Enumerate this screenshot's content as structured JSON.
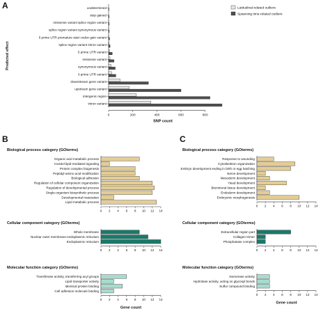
{
  "panels": {
    "a_label": "A",
    "b_label": "B",
    "c_label": "C"
  },
  "colors": {
    "latitudinal": "#e6e6e6",
    "spawning": "#4d4d4d",
    "biological_process": "#e4cd95",
    "cellular_component": "#1a7a6a",
    "molecular_function": "#a8dccf",
    "bar_edge": "#333333"
  },
  "chart_data": [
    {
      "id": "A",
      "type": "bar",
      "orientation": "horizontal",
      "xlabel": "SNP count",
      "ylabel": "Predicted effect",
      "xlim": [
        0,
        900
      ],
      "xticks": [
        0,
        200,
        400,
        600,
        800
      ],
      "legend_position": "top-right",
      "categories": [
        "undetermined",
        "stop gained",
        "missense variant splice region variant",
        "splice region variant synonymous variant",
        "5 prime UTR premature start codon gain variant",
        "splice region variant intron variant",
        "5 prime UTR variant",
        "missense variant",
        "synonymous variant",
        "3 prime UTR variant",
        "downstream gene variant",
        "upstream gene variant",
        "intergenic region",
        "intron variant"
      ],
      "series": [
        {
          "name": "Latitudinal-related outliers",
          "values": [
            0,
            0,
            1,
            1,
            1,
            4,
            7,
            12,
            20,
            25,
            95,
            170,
            230,
            350
          ]
        },
        {
          "name": "Spawning time-related outliers",
          "values": [
            3,
            4,
            5,
            5,
            8,
            12,
            30,
            45,
            55,
            60,
            330,
            600,
            840,
            940
          ]
        }
      ]
    },
    {
      "id": "B",
      "type": "bar",
      "orientation": "horizontal",
      "xlabel": "Gene count",
      "xlim": [
        0,
        14
      ],
      "xticks": [
        0,
        2,
        4,
        6,
        8,
        10,
        12,
        14
      ],
      "groups": [
        {
          "title": "Biological process category (GOterms)",
          "color_key": "biological_process",
          "categories": [
            "Organic acid metabolic process",
            "Inositol lipid-mediated signaling",
            "Protein complex biogenesis",
            "Peptidyl-amino acid modification",
            "Biological adhesion",
            "Regulation of cellular component organization",
            "Regulation of developmental process",
            "Single-organism biosynthetic process",
            "Developmental maturation",
            "Lipid metabolic process"
          ],
          "values": [
            9,
            2,
            8,
            8,
            9,
            12,
            12.5,
            12,
            3,
            13
          ]
        },
        {
          "title": "Cellular component category (GOterms)",
          "color_key": "cellular_component",
          "categories": [
            "Whole membrane",
            "Nuclear outer membrane-endoplasmic reticulum",
            "Endoplasmic reticulum"
          ],
          "values": [
            9,
            11,
            14
          ]
        },
        {
          "title": "Molecular function category (GOterms)",
          "color_key": "molecular_function",
          "categories": [
            "Transferase activity, transferring acyl groups",
            "Lipid transporter activity",
            "Identical protein binding",
            "Cell adhesion molecule binding"
          ],
          "values": [
            6,
            3,
            5,
            3
          ]
        }
      ]
    },
    {
      "id": "C",
      "type": "bar",
      "orientation": "horizontal",
      "xlabel": "Gene count",
      "xlim": [
        0,
        14
      ],
      "xticks": [
        0,
        2,
        4,
        6,
        8,
        10,
        12,
        14
      ],
      "groups": [
        {
          "title": "Biological process category (GOterms)",
          "color_key": "biological_process",
          "categories": [
            "Response to wounding",
            "Cytoskeleton organization",
            "Embryo development ending in birth or egg hatching",
            "Nerve development",
            "Mesoderm development",
            "Head development",
            "Biomineral tissue development",
            "Endoderm development",
            "Embryonic morphogenesis"
          ],
          "values": [
            4,
            9,
            8,
            2,
            3,
            7,
            2,
            3,
            10
          ]
        },
        {
          "title": "Cellular component category (GOterms)",
          "color_key": "cellular_component",
          "categories": [
            "Extracellular region part",
            "Collagen trimer",
            "Phosphatase complex"
          ],
          "values": [
            8,
            2,
            2
          ]
        },
        {
          "title": "Molecular function category (GOterms)",
          "color_key": "molecular_function",
          "categories": [
            "Isomerase activity",
            "Hydrolase activity, acting on glycosyl bonds",
            "Sulfur compound binding"
          ],
          "values": [
            3,
            3,
            3
          ]
        }
      ]
    }
  ]
}
